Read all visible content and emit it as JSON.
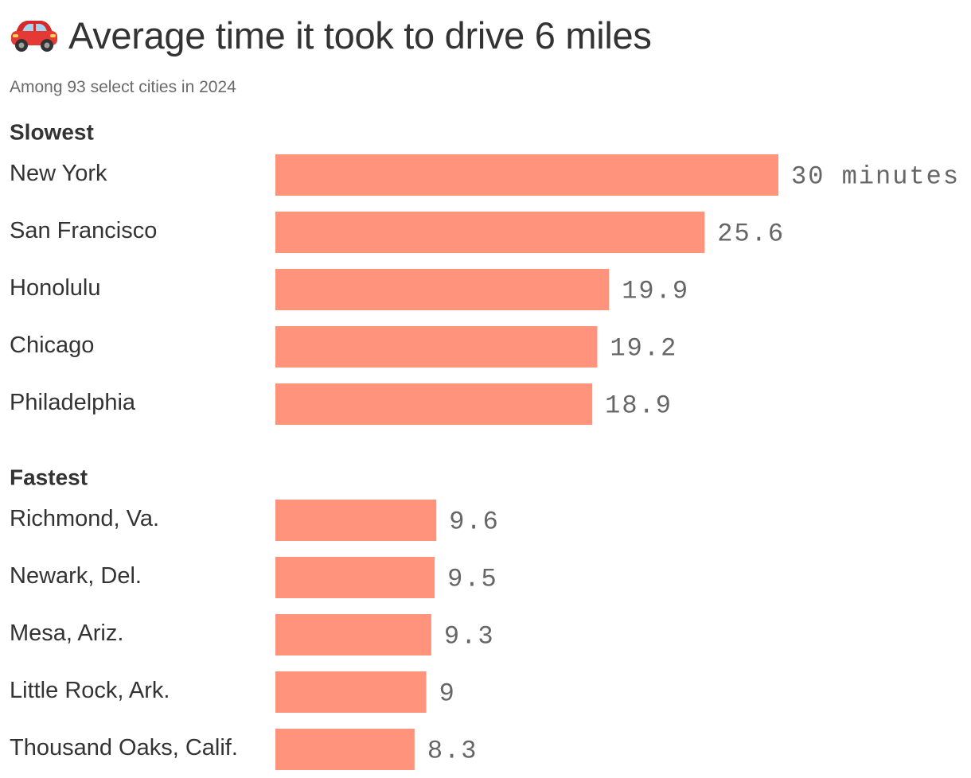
{
  "header": {
    "icon": "car-icon",
    "title": "Average time it took to drive 6 miles",
    "subtitle": "Among 93 select cities in 2024"
  },
  "colors": {
    "bar": "#ff937b",
    "title_text": "#333333",
    "value_text": "#666666"
  },
  "chart_data": {
    "type": "bar",
    "orientation": "horizontal",
    "title": "Average time it took to drive 6 miles",
    "subtitle": "Among 93 select cities in 2024",
    "unit": "minutes",
    "xlim": [
      0,
      30
    ],
    "grid": false,
    "legend": "none",
    "groups": [
      {
        "label": "Slowest",
        "categories": [
          "New York",
          "San Francisco",
          "Honolulu",
          "Chicago",
          "Philadelphia"
        ],
        "values": [
          30,
          25.6,
          19.9,
          19.2,
          18.9
        ],
        "value_labels": [
          "30 minutes",
          "25.6",
          "19.9",
          "19.2",
          "18.9"
        ]
      },
      {
        "label": "Fastest",
        "categories": [
          "Richmond, Va.",
          "Newark, Del.",
          "Mesa, Ariz.",
          "Little Rock, Ark.",
          "Thousand Oaks, Calif."
        ],
        "values": [
          9.6,
          9.5,
          9.3,
          9,
          8.3
        ],
        "value_labels": [
          "9.6",
          "9.5",
          "9.3",
          "9",
          "8.3"
        ]
      }
    ]
  }
}
